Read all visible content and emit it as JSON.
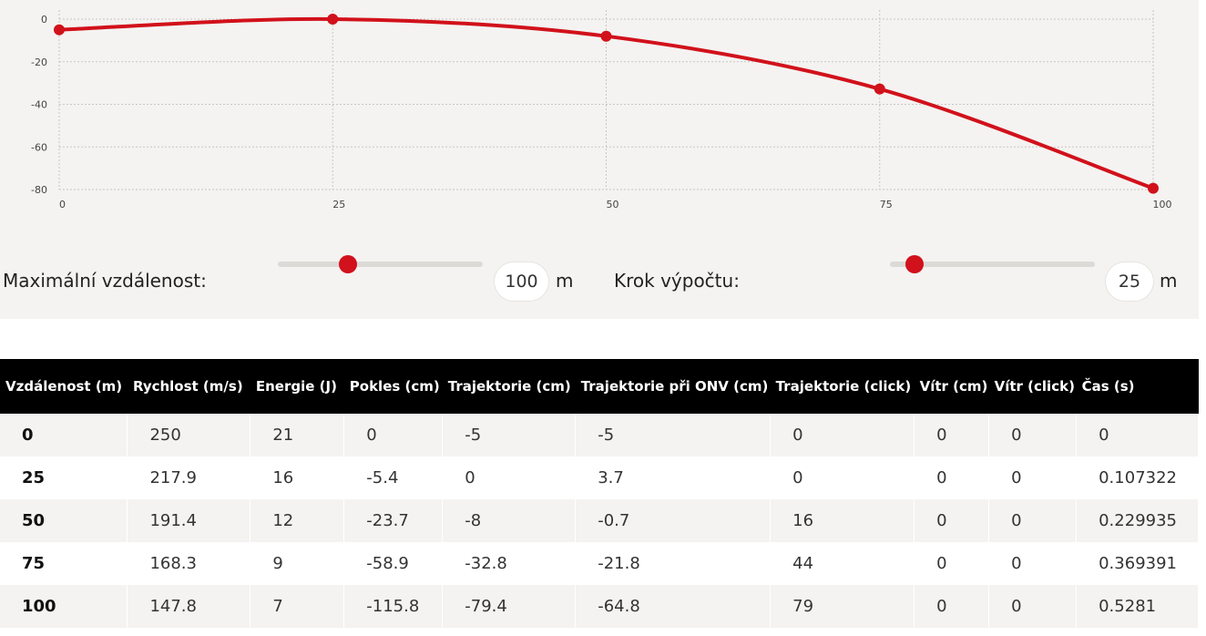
{
  "chart_data": {
    "type": "line",
    "x": [
      0,
      25,
      50,
      75,
      100
    ],
    "series": [
      {
        "values": [
          -5,
          0,
          -8,
          -32.8,
          -79.4
        ],
        "color": "#d1111b"
      }
    ],
    "xticks": [
      "0",
      "25",
      "50",
      "75",
      "100"
    ],
    "yticks": [
      "0",
      "-20",
      "-40",
      "-60",
      "-80"
    ],
    "xlim": [
      0,
      100
    ],
    "ylim": [
      -80,
      0
    ],
    "grid": true
  },
  "controls": {
    "max_distance": {
      "label": "Maximální vzdálenost:",
      "value": "100",
      "unit": "m",
      "slider_fraction": 0.34
    },
    "step": {
      "label": "Krok výpočtu:",
      "value": "25",
      "unit": "m",
      "slider_fraction": 0.12
    }
  },
  "table": {
    "headers": [
      "Vzdálenost (m)",
      "Rychlost (m/s)",
      "Energie (J)",
      "Pokles (cm)",
      "Trajektorie (cm)",
      "Trajektorie při ONV (cm)",
      "Trajektorie (click)",
      "Vítr (cm)",
      "Vítr (click)",
      "Čas (s)"
    ],
    "rows": [
      [
        "0",
        "250",
        "21",
        "0",
        "-5",
        "-5",
        "0",
        "0",
        "0",
        "0"
      ],
      [
        "25",
        "217.9",
        "16",
        "-5.4",
        "0",
        "3.7",
        "0",
        "0",
        "0",
        "0.107322"
      ],
      [
        "50",
        "191.4",
        "12",
        "-23.7",
        "-8",
        "-0.7",
        "16",
        "0",
        "0",
        "0.229935"
      ],
      [
        "75",
        "168.3",
        "9",
        "-58.9",
        "-32.8",
        "-21.8",
        "44",
        "0",
        "0",
        "0.369391"
      ],
      [
        "100",
        "147.8",
        "7",
        "-115.8",
        "-79.4",
        "-64.8",
        "79",
        "0",
        "0",
        "0.5281"
      ]
    ]
  }
}
